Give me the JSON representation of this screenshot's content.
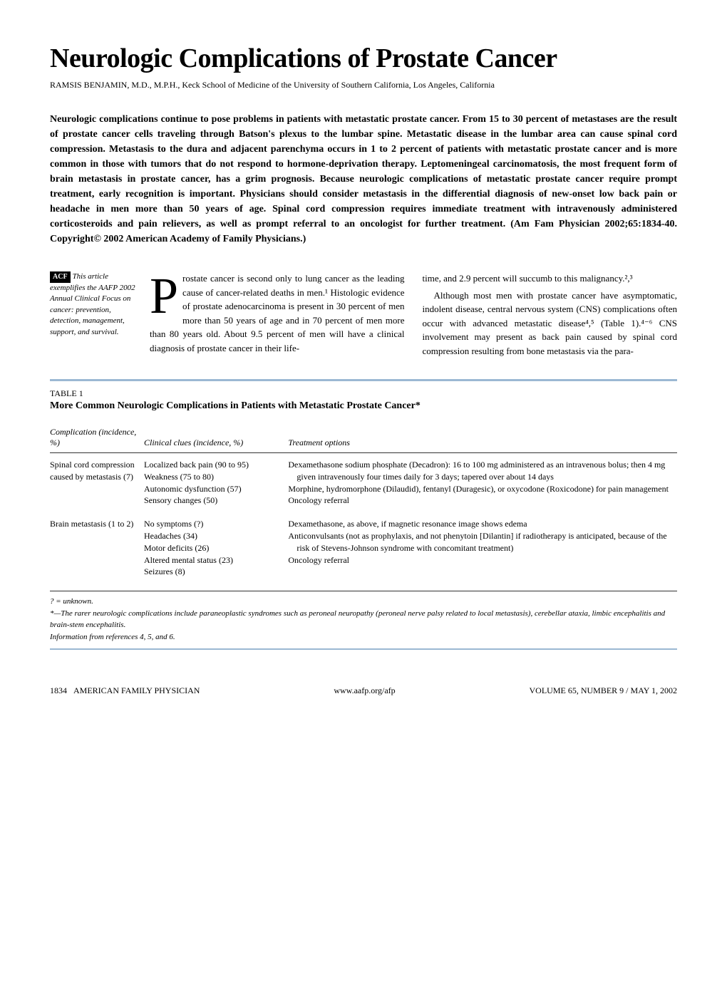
{
  "title": "Neurologic Complications of Prostate Cancer",
  "author": "RAMSIS BENJAMIN, M.D., M.P.H., Keck School of Medicine of the University of Southern California, Los Angeles, California",
  "abstract": "Neurologic complications continue to pose problems in patients with metastatic prostate cancer. From 15 to 30 percent of metastases are the result of prostate cancer cells traveling through Batson's plexus to the lumbar spine. Metastatic disease in the lumbar area can cause spinal cord compression. Metastasis to the dura and adjacent parenchyma occurs in 1 to 2 percent of patients with metastatic prostate cancer and is more common in those with tumors that do not respond to hormone-deprivation therapy. Leptomeningeal carcinomatosis, the most frequent form of brain metastasis in prostate cancer, has a grim prognosis. Because neurologic complications of metastatic prostate cancer require prompt treatment, early recognition is important. Physicians should consider metastasis in the differential diagnosis of new-onset low back pain or headache in men more than 50 years of age. Spinal cord compression requires immediate treatment with intravenously administered corticosteroids and pain relievers, as well as prompt referral to an oncologist for further treatment. (Am Fam Physician 2002;65:1834-40. Copyright© 2002 American Academy of Family Physicians.)",
  "sidebar": {
    "badge": "ACF",
    "text": "This article exemplifies the AAFP 2002 Annual Clinical Focus on cancer: prevention, detection, management, support, and survival."
  },
  "body": {
    "dropcap": "P",
    "col1": "rostate cancer is second only to lung cancer as the leading cause of cancer-related deaths in men.¹ Histologic evidence of prostate adenocarcinoma is present in 30 percent of men more than 50 years of age and in 70 percent of men more than 80 years old. About 9.5 percent of men will have a clinical diagnosis of prostate cancer in their life-",
    "col2": "time, and 2.9 percent will succumb to this malignancy.²,³",
    "col2_p2": "Although most men with prostate cancer have asymptomatic, indolent disease, central nervous system (CNS) complications often occur with advanced metastatic disease⁴,⁵ (Table 1).⁴⁻⁶ CNS involvement may present as back pain caused by spinal cord compression resulting from bone metastasis via the para-"
  },
  "table": {
    "label": "TABLE 1",
    "title": "More Common Neurologic Complications in Patients with Metastatic Prostate Cancer*",
    "headers": {
      "complication": "Complication (incidence, %)",
      "clues": "Clinical clues (incidence, %)",
      "treatment": "Treatment options"
    },
    "rows": [
      {
        "complication": "Spinal cord compression caused by metastasis (7)",
        "clues": "Localized back pain (90 to 95)\nWeakness (75 to 80)\nAutonomic dysfunction (57)\nSensory changes (50)",
        "treatment": "Dexamethasone sodium phosphate (Decadron): 16 to 100 mg administered as an intravenous bolus; then 4 mg given intravenously four times daily for 3 days; tapered over about 14 days\nMorphine, hydromorphone (Dilaudid), fentanyl (Duragesic), or oxycodone (Roxicodone) for pain management\nOncology referral"
      },
      {
        "complication": "Brain metastasis (1 to 2)",
        "clues": "No symptoms (?)\nHeadaches (34)\nMotor deficits (26)\nAltered mental status (23)\nSeizures (8)",
        "treatment": "Dexamethasone, as above, if magnetic resonance image shows edema\nAnticonvulsants (not as prophylaxis, and not phenytoin [Dilantin] if radiotherapy is anticipated, because of the risk of Stevens-Johnson syndrome with concomitant treatment)\nOncology referral"
      }
    ],
    "footer": {
      "line1": "? = unknown.",
      "line2": "*—The rarer neurologic complications include paraneoplastic syndromes such as peroneal neuropathy (peroneal nerve palsy related to local metastasis), cerebellar ataxia, limbic encephalitis and brain-stem encephalitis.",
      "line3": "Information from references 4, 5, and 6."
    }
  },
  "footer": {
    "page": "1834",
    "left": "AMERICAN FAMILY PHYSICIAN",
    "center": "www.aafp.org/afp",
    "right": "VOLUME 65, NUMBER 9 / MAY 1, 2002"
  },
  "colors": {
    "divider": "#9bb8d3",
    "text": "#000000",
    "background": "#ffffff"
  }
}
